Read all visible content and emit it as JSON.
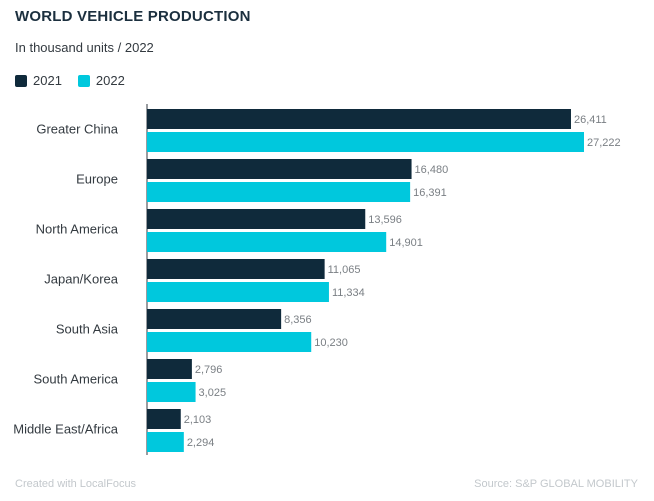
{
  "header": {
    "title": "WORLD VEHICLE PRODUCTION",
    "subtitle": "In thousand units / 2022"
  },
  "footer": {
    "credit": "Created with LocalFocus",
    "source": "Source: S&P GLOBAL MOBILITY"
  },
  "colors": {
    "series_2021": "#0f2a3b",
    "series_2022": "#00c8dd",
    "axis": "#333a40",
    "text": "#333a40",
    "value_label": "#7a7f84"
  },
  "chart_data": {
    "type": "bar",
    "orientation": "horizontal",
    "title": "WORLD VEHICLE PRODUCTION",
    "subtitle": "In thousand units / 2022",
    "categories": [
      "Greater China",
      "Europe",
      "North America",
      "Japan/Korea",
      "South Asia",
      "South America",
      "Middle East/Africa"
    ],
    "series": [
      {
        "name": "2021",
        "values": [
          26411,
          16480,
          13596,
          11065,
          8356,
          2796,
          2103
        ]
      },
      {
        "name": "2022",
        "values": [
          27222,
          16391,
          14901,
          11334,
          10230,
          3025,
          2294
        ]
      }
    ],
    "value_labels": {
      "2021": [
        "26,411",
        "16,480",
        "13,596",
        "11,065",
        "8,356",
        "2,796",
        "2,103"
      ],
      "2022": [
        "27,222",
        "16,391",
        "14,901",
        "11,334",
        "10,230",
        "3,025",
        "2,294"
      ]
    },
    "xlim": [
      0,
      27222
    ],
    "legend_position": "top-left",
    "grid": false
  }
}
